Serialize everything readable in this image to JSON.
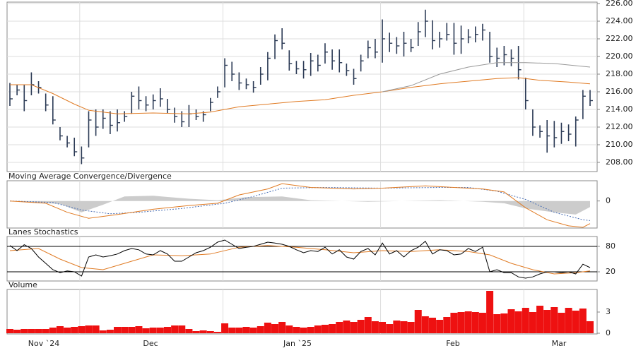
{
  "chart_data": [
    {
      "type": "ohlc",
      "color": "#2b3a55",
      "grid": true,
      "grid_color": "#dddddd",
      "ylim": [
        206.96,
        226.16
      ],
      "yticks": [
        {
          "value": 208,
          "label": "208.00"
        },
        {
          "value": 210,
          "label": "210.00"
        },
        {
          "value": 212,
          "label": "212.00"
        },
        {
          "value": 214,
          "label": "214.00"
        },
        {
          "value": 216,
          "label": "216.00"
        },
        {
          "value": 218,
          "label": "218.00"
        },
        {
          "value": 220,
          "label": "220.00"
        },
        {
          "value": 222,
          "label": "222.00"
        },
        {
          "value": 224,
          "label": "224.00"
        },
        {
          "value": 226,
          "label": "226.00"
        }
      ],
      "high": [
        217.0,
        216.8,
        216.8,
        218.2,
        217.2,
        215.8,
        215.5,
        212.0,
        211.0,
        210.8,
        209.8,
        213.8,
        214.0,
        214.0,
        213.8,
        214.0,
        213.8,
        216.0,
        216.6,
        215.5,
        215.7,
        216.4,
        215.2,
        214.2,
        213.8,
        214.5,
        214.0,
        213.8,
        215.3,
        216.6,
        219.8,
        219.4,
        218.2,
        217.5,
        217.2,
        218.8,
        220.5,
        222.5,
        223.2,
        220.7,
        219.5,
        219.5,
        220.4,
        220.2,
        221.5,
        220.8,
        220.8,
        219.2,
        218.6,
        220.2,
        221.8,
        222.0,
        224.2,
        222.7,
        222.2,
        222.8,
        222.0,
        223.9,
        225.3,
        224.1,
        222.8,
        223.8,
        223.8,
        223.5,
        223.1,
        223.4,
        223.7,
        222.8,
        221.0,
        221.2,
        220.8,
        221.2,
        217.6,
        214.0,
        212.2,
        212.8,
        212.7,
        212.5,
        212.3,
        213.2,
        216.2,
        216.2
      ],
      "low": [
        214.4,
        215.6,
        213.8,
        215.6,
        215.8,
        213.8,
        212.3,
        210.5,
        209.7,
        208.7,
        207.8,
        209.7,
        211.0,
        211.8,
        211.2,
        211.5,
        212.6,
        213.5,
        214.0,
        213.8,
        214.0,
        214.3,
        213.6,
        212.5,
        212.0,
        212.0,
        212.8,
        212.6,
        213.8,
        215.3,
        216.5,
        217.2,
        216.2,
        216.3,
        215.9,
        216.8,
        217.3,
        219.7,
        220.8,
        218.4,
        218.0,
        217.5,
        217.8,
        218.3,
        219.2,
        218.5,
        218.2,
        217.8,
        216.8,
        218.3,
        219.8,
        219.8,
        219.3,
        220.5,
        220.3,
        220.0,
        220.5,
        221.2,
        222.2,
        220.8,
        221.0,
        221.8,
        220.2,
        220.3,
        221.5,
        221.6,
        221.8,
        219.3,
        218.8,
        219.0,
        218.9,
        217.4,
        214.0,
        211.0,
        210.8,
        209.1,
        209.7,
        210.1,
        210.4,
        209.8,
        212.9,
        214.4
      ],
      "close": [
        215.2,
        216.2,
        215.0,
        216.8,
        216.5,
        214.5,
        212.8,
        211.0,
        210.2,
        209.2,
        208.5,
        212.8,
        212.0,
        213.0,
        212.2,
        212.5,
        213.2,
        215.5,
        215.0,
        214.5,
        215.0,
        215.2,
        214.0,
        213.2,
        212.6,
        213.5,
        213.2,
        213.4,
        214.8,
        216.0,
        219.0,
        218.0,
        217.0,
        216.8,
        216.5,
        218.0,
        219.8,
        221.8,
        221.5,
        219.2,
        218.6,
        218.5,
        219.5,
        219.0,
        220.5,
        219.5,
        219.3,
        218.4,
        217.5,
        219.5,
        221.0,
        220.5,
        222.0,
        221.5,
        221.2,
        221.5,
        221.0,
        222.8,
        224.0,
        221.8,
        222.0,
        222.5,
        221.5,
        222.0,
        222.2,
        222.5,
        223.0,
        220.0,
        219.8,
        220.2,
        219.8,
        218.5,
        215.0,
        212.0,
        211.5,
        211.0,
        210.8,
        211.5,
        211.2,
        212.8,
        215.5,
        215.0
      ],
      "series": [
        {
          "color": "#e07b24",
          "x": [
            0,
            3,
            6,
            9,
            11,
            15,
            20,
            25,
            28,
            32,
            36,
            40,
            44,
            48,
            52,
            56,
            60,
            64,
            68,
            71,
            74,
            78,
            81
          ],
          "values": [
            216.8,
            216.8,
            215.8,
            214.6,
            213.9,
            213.5,
            213.6,
            213.5,
            213.7,
            214.3,
            214.6,
            214.9,
            215.1,
            215.6,
            216.0,
            216.5,
            216.9,
            217.2,
            217.5,
            217.6,
            217.3,
            217.1,
            216.9
          ]
        },
        {
          "color": "#999999",
          "x": [
            52,
            56,
            60,
            64,
            68,
            72,
            76,
            81
          ],
          "values": [
            216.0,
            216.7,
            218.0,
            218.8,
            219.3,
            219.3,
            219.2,
            218.8
          ]
        }
      ]
    },
    {
      "type": "line",
      "title": "Moving Average Convergence/Divergence",
      "grid": false,
      "ylim": [
        -3.5,
        2.5
      ],
      "yticks": [
        0
      ],
      "series": [
        {
          "color": "#cccccc",
          "fill": true,
          "x": [
            0,
            7,
            10,
            13,
            16,
            20,
            25,
            29,
            33,
            38,
            42,
            50,
            60,
            66,
            69,
            72,
            76,
            79,
            81
          ],
          "values": [
            0,
            -0.4,
            -1.5,
            -0.5,
            0.6,
            0.7,
            0.3,
            0.1,
            0.5,
            0.6,
            0.1,
            -0.1,
            0.1,
            -0.1,
            -0.3,
            -1.0,
            -1.5,
            -1.8,
            -0.8
          ]
        },
        {
          "color": "#4a6fb5",
          "dash": true,
          "x": [
            0,
            6,
            10,
            14,
            18,
            24,
            30,
            34,
            38,
            44,
            52,
            60,
            64,
            68,
            72,
            76,
            80,
            81
          ],
          "values": [
            0,
            -0.2,
            -1.2,
            -1.7,
            -1.5,
            -1.0,
            -0.3,
            0.6,
            1.7,
            1.8,
            1.7,
            1.8,
            1.8,
            1.3,
            0.2,
            -1.5,
            -2.5,
            -2.6
          ]
        },
        {
          "color": "#e07b24",
          "x": [
            0,
            5,
            8,
            11,
            15,
            20,
            25,
            29,
            32,
            36,
            38,
            42,
            48,
            52,
            58,
            62,
            66,
            69,
            72,
            75,
            78,
            80,
            81
          ],
          "values": [
            0,
            -0.3,
            -1.5,
            -2.3,
            -1.8,
            -1.1,
            -0.6,
            -0.3,
            0.8,
            1.6,
            2.3,
            1.8,
            1.6,
            1.7,
            2.0,
            1.8,
            1.6,
            1.2,
            -0.9,
            -2.5,
            -3.3,
            -3.5,
            -3.0
          ]
        }
      ]
    },
    {
      "type": "line",
      "title": "Lanes Stochastics",
      "grid": true,
      "grid_color": "#000000",
      "ylim": [
        0,
        100
      ],
      "yticks": [
        20,
        80
      ],
      "series": [
        {
          "color": "#e07b24",
          "x": [
            0,
            4,
            7,
            10,
            13,
            16,
            20,
            24,
            28,
            32,
            36,
            40,
            44,
            48,
            52,
            56,
            60,
            64,
            67,
            70,
            73,
            76,
            79,
            81
          ],
          "values": [
            70,
            75,
            50,
            30,
            25,
            40,
            60,
            58,
            62,
            78,
            82,
            78,
            72,
            65,
            70,
            68,
            72,
            68,
            60,
            40,
            25,
            15,
            18,
            22
          ]
        },
        {
          "color": "#000000",
          "values": [
            82,
            70,
            84,
            75,
            55,
            40,
            25,
            18,
            22,
            20,
            10,
            55,
            60,
            55,
            58,
            62,
            70,
            75,
            72,
            62,
            60,
            70,
            62,
            45,
            45,
            55,
            65,
            70,
            78,
            90,
            95,
            85,
            75,
            78,
            80,
            85,
            90,
            88,
            85,
            80,
            72,
            65,
            70,
            68,
            78,
            62,
            72,
            55,
            50,
            68,
            75,
            60,
            88,
            62,
            70,
            55,
            70,
            78,
            92,
            62,
            72,
            70,
            60,
            62,
            75,
            68,
            78,
            20,
            25,
            18,
            18,
            8,
            5,
            8,
            15,
            20,
            20,
            18,
            20,
            15,
            38,
            30
          ]
        }
      ]
    },
    {
      "type": "bar",
      "title": "Volume",
      "color": "#ee1111",
      "grid": false,
      "ylim": [
        0,
        6.2
      ],
      "yticks": [
        0,
        3
      ],
      "values": [
        0.6,
        0.5,
        0.6,
        0.6,
        0.6,
        0.6,
        0.8,
        1.0,
        0.8,
        0.9,
        1.0,
        1.1,
        1.1,
        0.4,
        0.5,
        0.9,
        0.9,
        0.9,
        1.0,
        0.7,
        0.8,
        0.8,
        0.9,
        1.1,
        1.1,
        0.6,
        0.3,
        0.4,
        0.3,
        0.2,
        1.4,
        0.8,
        0.8,
        0.9,
        0.8,
        1.0,
        1.5,
        1.3,
        1.6,
        1.1,
        0.9,
        0.8,
        0.9,
        1.1,
        1.2,
        1.3,
        1.6,
        1.8,
        1.6,
        1.9,
        2.3,
        1.7,
        1.6,
        1.3,
        1.8,
        1.7,
        1.6,
        3.3,
        2.4,
        2.2,
        1.9,
        2.3,
        2.9,
        3.0,
        3.1,
        3.0,
        2.9,
        6.0,
        2.7,
        2.8,
        3.4,
        3.1,
        3.6,
        3.0,
        3.9,
        3.3,
        3.7,
        2.9,
        3.6,
        3.2,
        3.5,
        1.7
      ],
      "x_labels": [
        "Nov `24",
        "Dec",
        "Jan `25",
        "Feb",
        "Mar"
      ]
    }
  ]
}
